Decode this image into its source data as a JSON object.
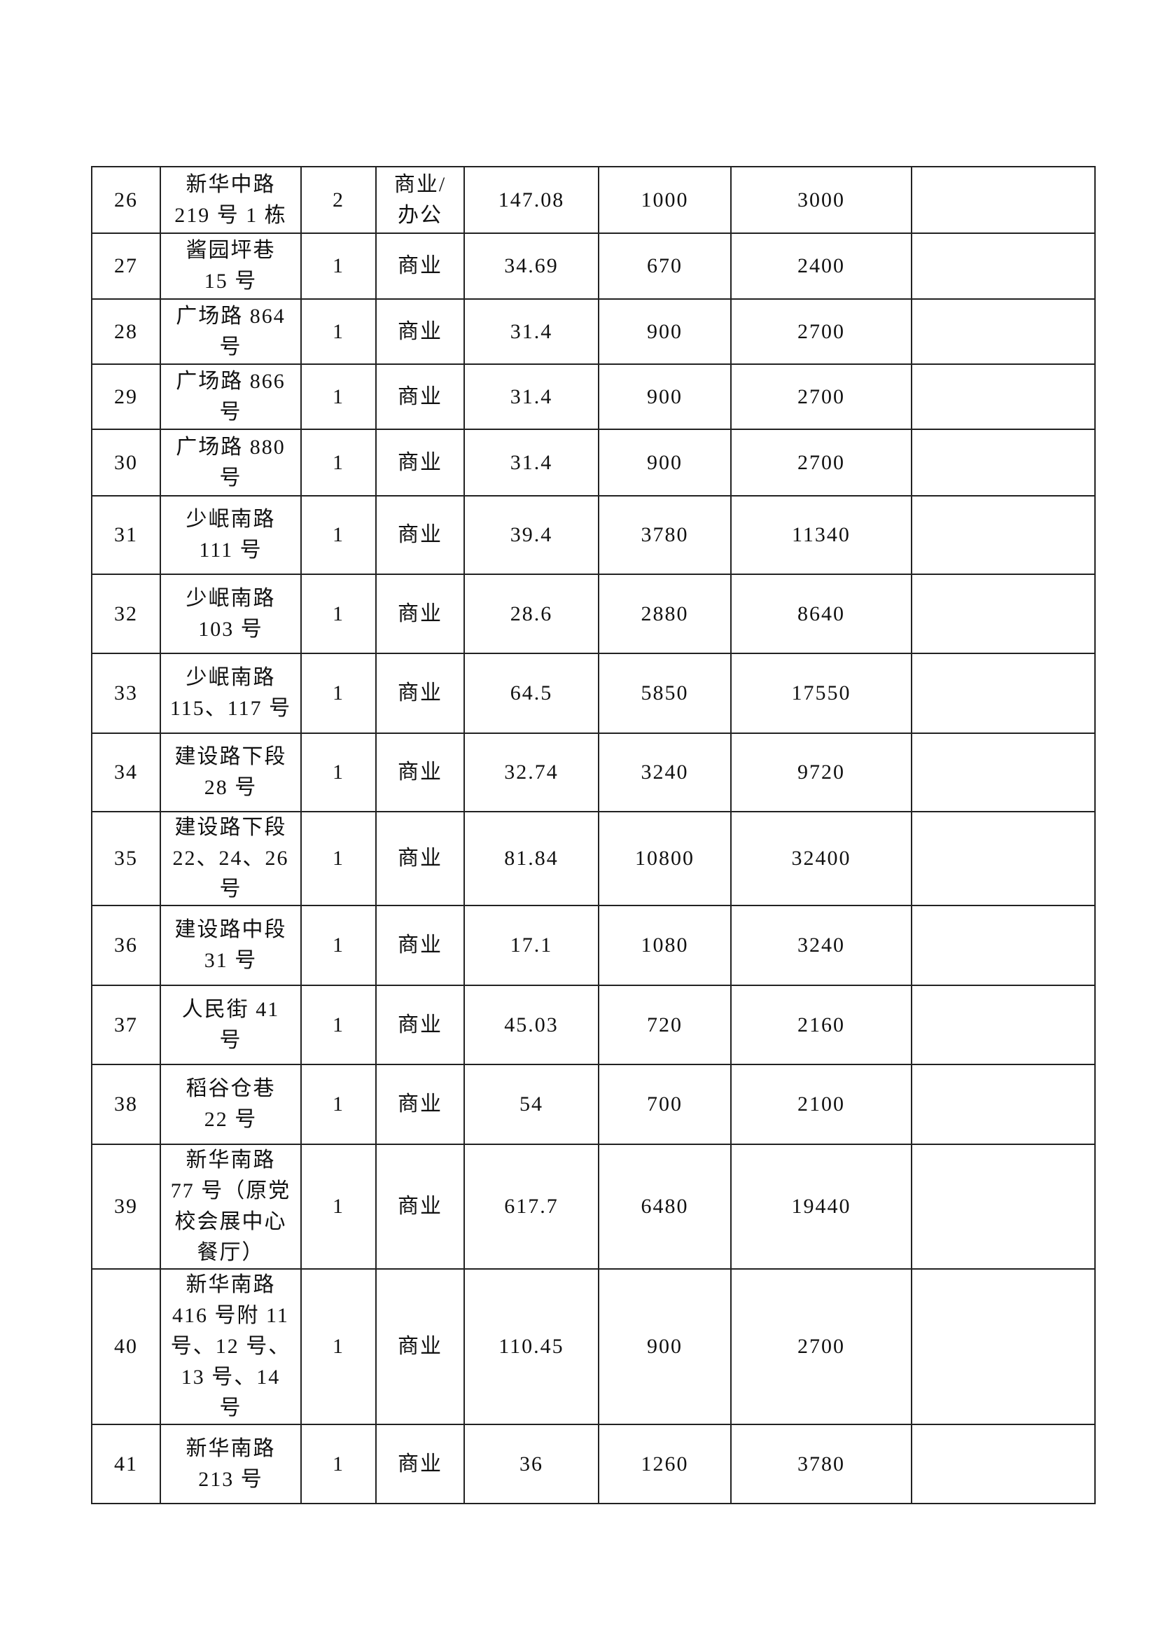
{
  "table": {
    "rows": [
      {
        "no": "26",
        "address": "新华中路\n219 号 1 栋",
        "count": "2",
        "use": "商业/\n办公",
        "area": "147.08",
        "c5": "1000",
        "c6": "3000",
        "c7": ""
      },
      {
        "no": "27",
        "address": "酱园坪巷\n15 号",
        "count": "1",
        "use": "商业",
        "area": "34.69",
        "c5": "670",
        "c6": "2400",
        "c7": ""
      },
      {
        "no": "28",
        "address": "广场路 864\n号",
        "count": "1",
        "use": "商业",
        "area": "31.4",
        "c5": "900",
        "c6": "2700",
        "c7": ""
      },
      {
        "no": "29",
        "address": "广场路 866\n号",
        "count": "1",
        "use": "商业",
        "area": "31.4",
        "c5": "900",
        "c6": "2700",
        "c7": ""
      },
      {
        "no": "30",
        "address": "广场路 880\n号",
        "count": "1",
        "use": "商业",
        "area": "31.4",
        "c5": "900",
        "c6": "2700",
        "c7": ""
      },
      {
        "no": "31",
        "address": "少岷南路\n111 号",
        "count": "1",
        "use": "商业",
        "area": "39.4",
        "c5": "3780",
        "c6": "11340",
        "c7": ""
      },
      {
        "no": "32",
        "address": "少岷南路\n103 号",
        "count": "1",
        "use": "商业",
        "area": "28.6",
        "c5": "2880",
        "c6": "8640",
        "c7": ""
      },
      {
        "no": "33",
        "address": "少岷南路\n115、117 号",
        "count": "1",
        "use": "商业",
        "area": "64.5",
        "c5": "5850",
        "c6": "17550",
        "c7": ""
      },
      {
        "no": "34",
        "address": "建设路下段\n28 号",
        "count": "1",
        "use": "商业",
        "area": "32.74",
        "c5": "3240",
        "c6": "9720",
        "c7": ""
      },
      {
        "no": "35",
        "address": "建设路下段\n22、24、26\n号",
        "count": "1",
        "use": "商业",
        "area": "81.84",
        "c5": "10800",
        "c6": "32400",
        "c7": ""
      },
      {
        "no": "36",
        "address": "建设路中段\n31 号",
        "count": "1",
        "use": "商业",
        "area": "17.1",
        "c5": "1080",
        "c6": "3240",
        "c7": ""
      },
      {
        "no": "37",
        "address": "人民街 41\n号",
        "count": "1",
        "use": "商业",
        "area": "45.03",
        "c5": "720",
        "c6": "2160",
        "c7": ""
      },
      {
        "no": "38",
        "address": "稻谷仓巷\n22 号",
        "count": "1",
        "use": "商业",
        "area": "54",
        "c5": "700",
        "c6": "2100",
        "c7": ""
      },
      {
        "no": "39",
        "address": "新华南路\n77 号（原党\n校会展中心\n餐厅）",
        "count": "1",
        "use": "商业",
        "area": "617.7",
        "c5": "6480",
        "c6": "19440",
        "c7": ""
      },
      {
        "no": "40",
        "address": "新华南路\n416 号附 11\n号、12 号、\n13 号、14\n号",
        "count": "1",
        "use": "商业",
        "area": "110.45",
        "c5": "900",
        "c6": "2700",
        "c7": ""
      },
      {
        "no": "41",
        "address": "新华南路\n213 号",
        "count": "1",
        "use": "商业",
        "area": "36",
        "c5": "1260",
        "c6": "3780",
        "c7": ""
      }
    ]
  }
}
